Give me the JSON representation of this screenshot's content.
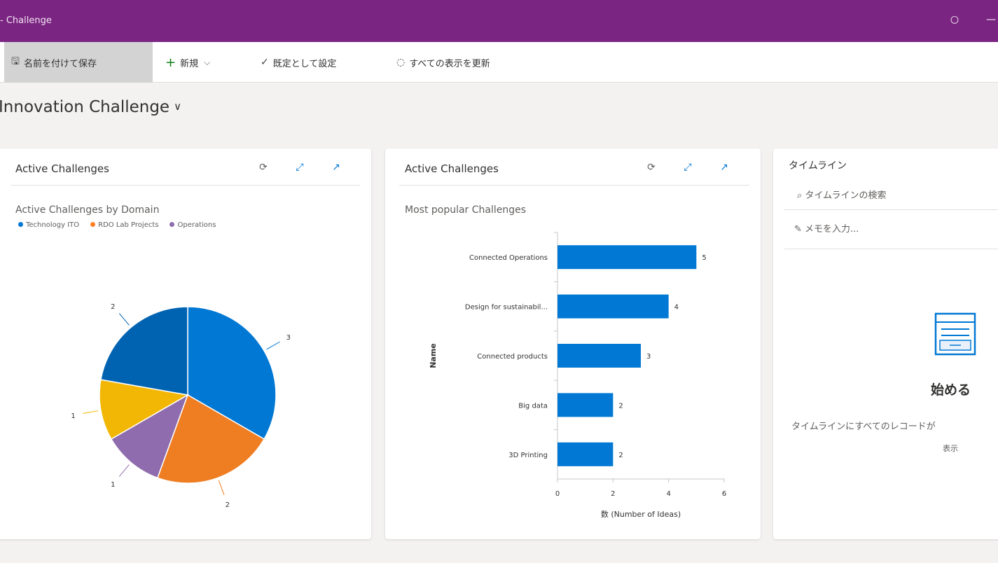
{
  "app": {
    "title": "- Challenge"
  },
  "topbar_icons": [
    "settings-icon",
    "minimize-icon"
  ],
  "commandbar": {
    "save_label": "名前を付けて保存",
    "new_label": "新規",
    "set_default_label": "既定として設定",
    "refresh_all_label": "すべての表示を更新"
  },
  "dashboard": {
    "title": "Innovation Challenge"
  },
  "card1": {
    "title": "Active Challenges",
    "subtitle": "Active Challenges by Domain",
    "legend": [
      {
        "label": "Technology ITO",
        "color": "#0078d4"
      },
      {
        "label": "RDO Lab Projects",
        "color": "#ff7f27"
      },
      {
        "label": "Operations",
        "color": "#8e6cad"
      }
    ]
  },
  "card2": {
    "title": "Active Challenges",
    "subtitle": "Most popular Challenges"
  },
  "card3": {
    "title": "タイムライン",
    "search_placeholder": "タイムラインの検索",
    "note_placeholder": "メモを入力...",
    "empty_title": "始める",
    "empty_desc": "タイムラインにすべてのレコードが",
    "empty_more": "表示"
  },
  "chart_data": [
    {
      "type": "pie",
      "title": "Active Challenges by Domain",
      "labels": [
        "Technology ITO",
        "RDO Lab Projects",
        "Operations",
        "",
        ""
      ],
      "values": [
        3,
        2,
        1,
        1,
        2
      ],
      "colors": [
        "#0078d4",
        "#ef7d22",
        "#8e6cad",
        "#f2b705",
        "#0063b1"
      ],
      "data_labels": [
        "3",
        "2",
        "1",
        "1",
        "2"
      ]
    },
    {
      "type": "bar",
      "orientation": "horizontal",
      "title": "Most popular Challenges",
      "categories": [
        "Connected Operations",
        "Design for sustainabil...",
        "Connected products",
        "Big data",
        "3D Printing"
      ],
      "values": [
        5,
        4,
        3,
        2,
        2
      ],
      "xlabel": "数 (Number of Ideas)",
      "ylabel": "Name",
      "xlim": [
        0,
        6
      ],
      "xticks": [
        "0",
        "2",
        "4",
        "6"
      ],
      "color": "#0078d4"
    }
  ]
}
